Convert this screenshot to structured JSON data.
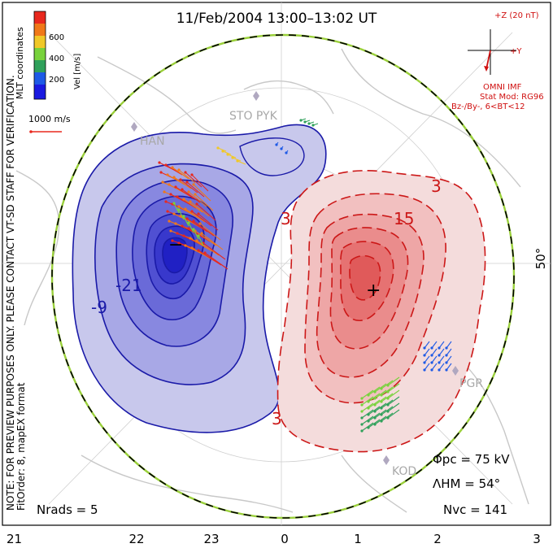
{
  "title": "11/Feb/2004 13:00–13:02 UT",
  "colorbar": {
    "label": "Vel [m/s]",
    "ticks": [
      "600",
      "400",
      "200"
    ],
    "colors": [
      "#e8281e",
      "#f07818",
      "#f0c828",
      "#78d23c",
      "#2fa05a",
      "#1e5ae6",
      "#1a1ae0"
    ]
  },
  "coords_label": "MLT coordinates",
  "scale_vector": "1000 m/s",
  "side_note": "NOTE: FOR PREVIEW PURPOSES ONLY. PLEASE CONTACT VT-SD STAFF FOR VERIFICATION.",
  "fit_order": "FitOrder: 8, mapEX format",
  "imf": {
    "z_label": "+Z (20 nT)",
    "y_label": "+Y",
    "source": "OMNI IMF",
    "model": "Stat Mod: RG96",
    "condition": "Bz-/By-, 6<BT<12",
    "color": "#d01010"
  },
  "latitude_label": "50°",
  "stations": [
    "STO PYK",
    "HAN",
    "PGR",
    "KOD"
  ],
  "contours": {
    "negative_labels": [
      "-21",
      "-9"
    ],
    "positive_labels": [
      "3",
      "15",
      "3",
      "3"
    ],
    "min_marker": "−",
    "max_marker": "+",
    "negative_color": "#1a1aa8",
    "positive_color": "#cc1818"
  },
  "stats": {
    "phi_pc": "Φpc = 75 kV",
    "lambda_hm": "ΛHM = 54°",
    "n_vc": "Nvc = 141",
    "n_rads": "Nrads = 5"
  },
  "mlt_ticks": [
    "21",
    "22",
    "23",
    "0",
    "1",
    "2",
    "3"
  ]
}
